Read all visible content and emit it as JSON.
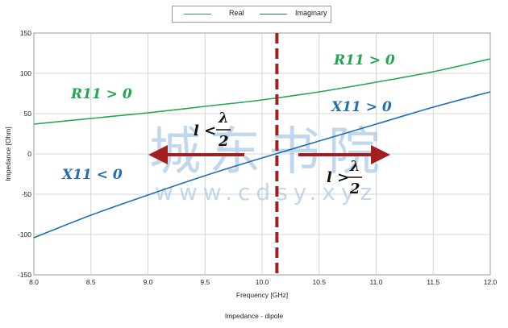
{
  "chart_data": {
    "type": "line",
    "title": "Impedance - dipole",
    "xlabel": "Frequency [GHz]",
    "ylabel": "Impedance [Ohm]",
    "xlim": [
      8.0,
      12.0
    ],
    "ylim": [
      -150,
      150
    ],
    "xticks": [
      "8.0",
      "8.5",
      "9.0",
      "9.5",
      "10.0",
      "10.5",
      "11.0",
      "11.5",
      "12.0"
    ],
    "yticks": [
      "150",
      "100",
      "50",
      "0",
      "-50",
      "-100",
      "-150"
    ],
    "grid": true,
    "legend_position": "top-center",
    "series": [
      {
        "name": "Real",
        "color": "#21a652",
        "x": [
          8.0,
          8.5,
          9.0,
          9.5,
          10.0,
          10.5,
          11.0,
          11.5,
          12.0
        ],
        "y": [
          37,
          44,
          51,
          59,
          67,
          77,
          89,
          102,
          118
        ]
      },
      {
        "name": "Imaginary",
        "color": "#1f6fb2",
        "x": [
          8.0,
          8.5,
          9.0,
          9.5,
          10.0,
          10.5,
          11.0,
          11.5,
          12.0
        ],
        "y": [
          -104,
          -76,
          -51,
          -27,
          -5,
          16,
          37,
          58,
          77
        ]
      }
    ],
    "marker_line": {
      "x": 10.13,
      "color": "#a31f1f"
    },
    "annotations": {
      "r_pos_right": "R11 > 0",
      "r_pos_left": "R11 > 0",
      "x_pos": "X11 > 0",
      "x_neg": "X11 < 0",
      "short_l": "l <",
      "long_l": "l >",
      "lambda": "λ",
      "two": "2"
    },
    "watermark": {
      "cn": "城东书院",
      "url": "www.cdsy.xyz"
    }
  }
}
